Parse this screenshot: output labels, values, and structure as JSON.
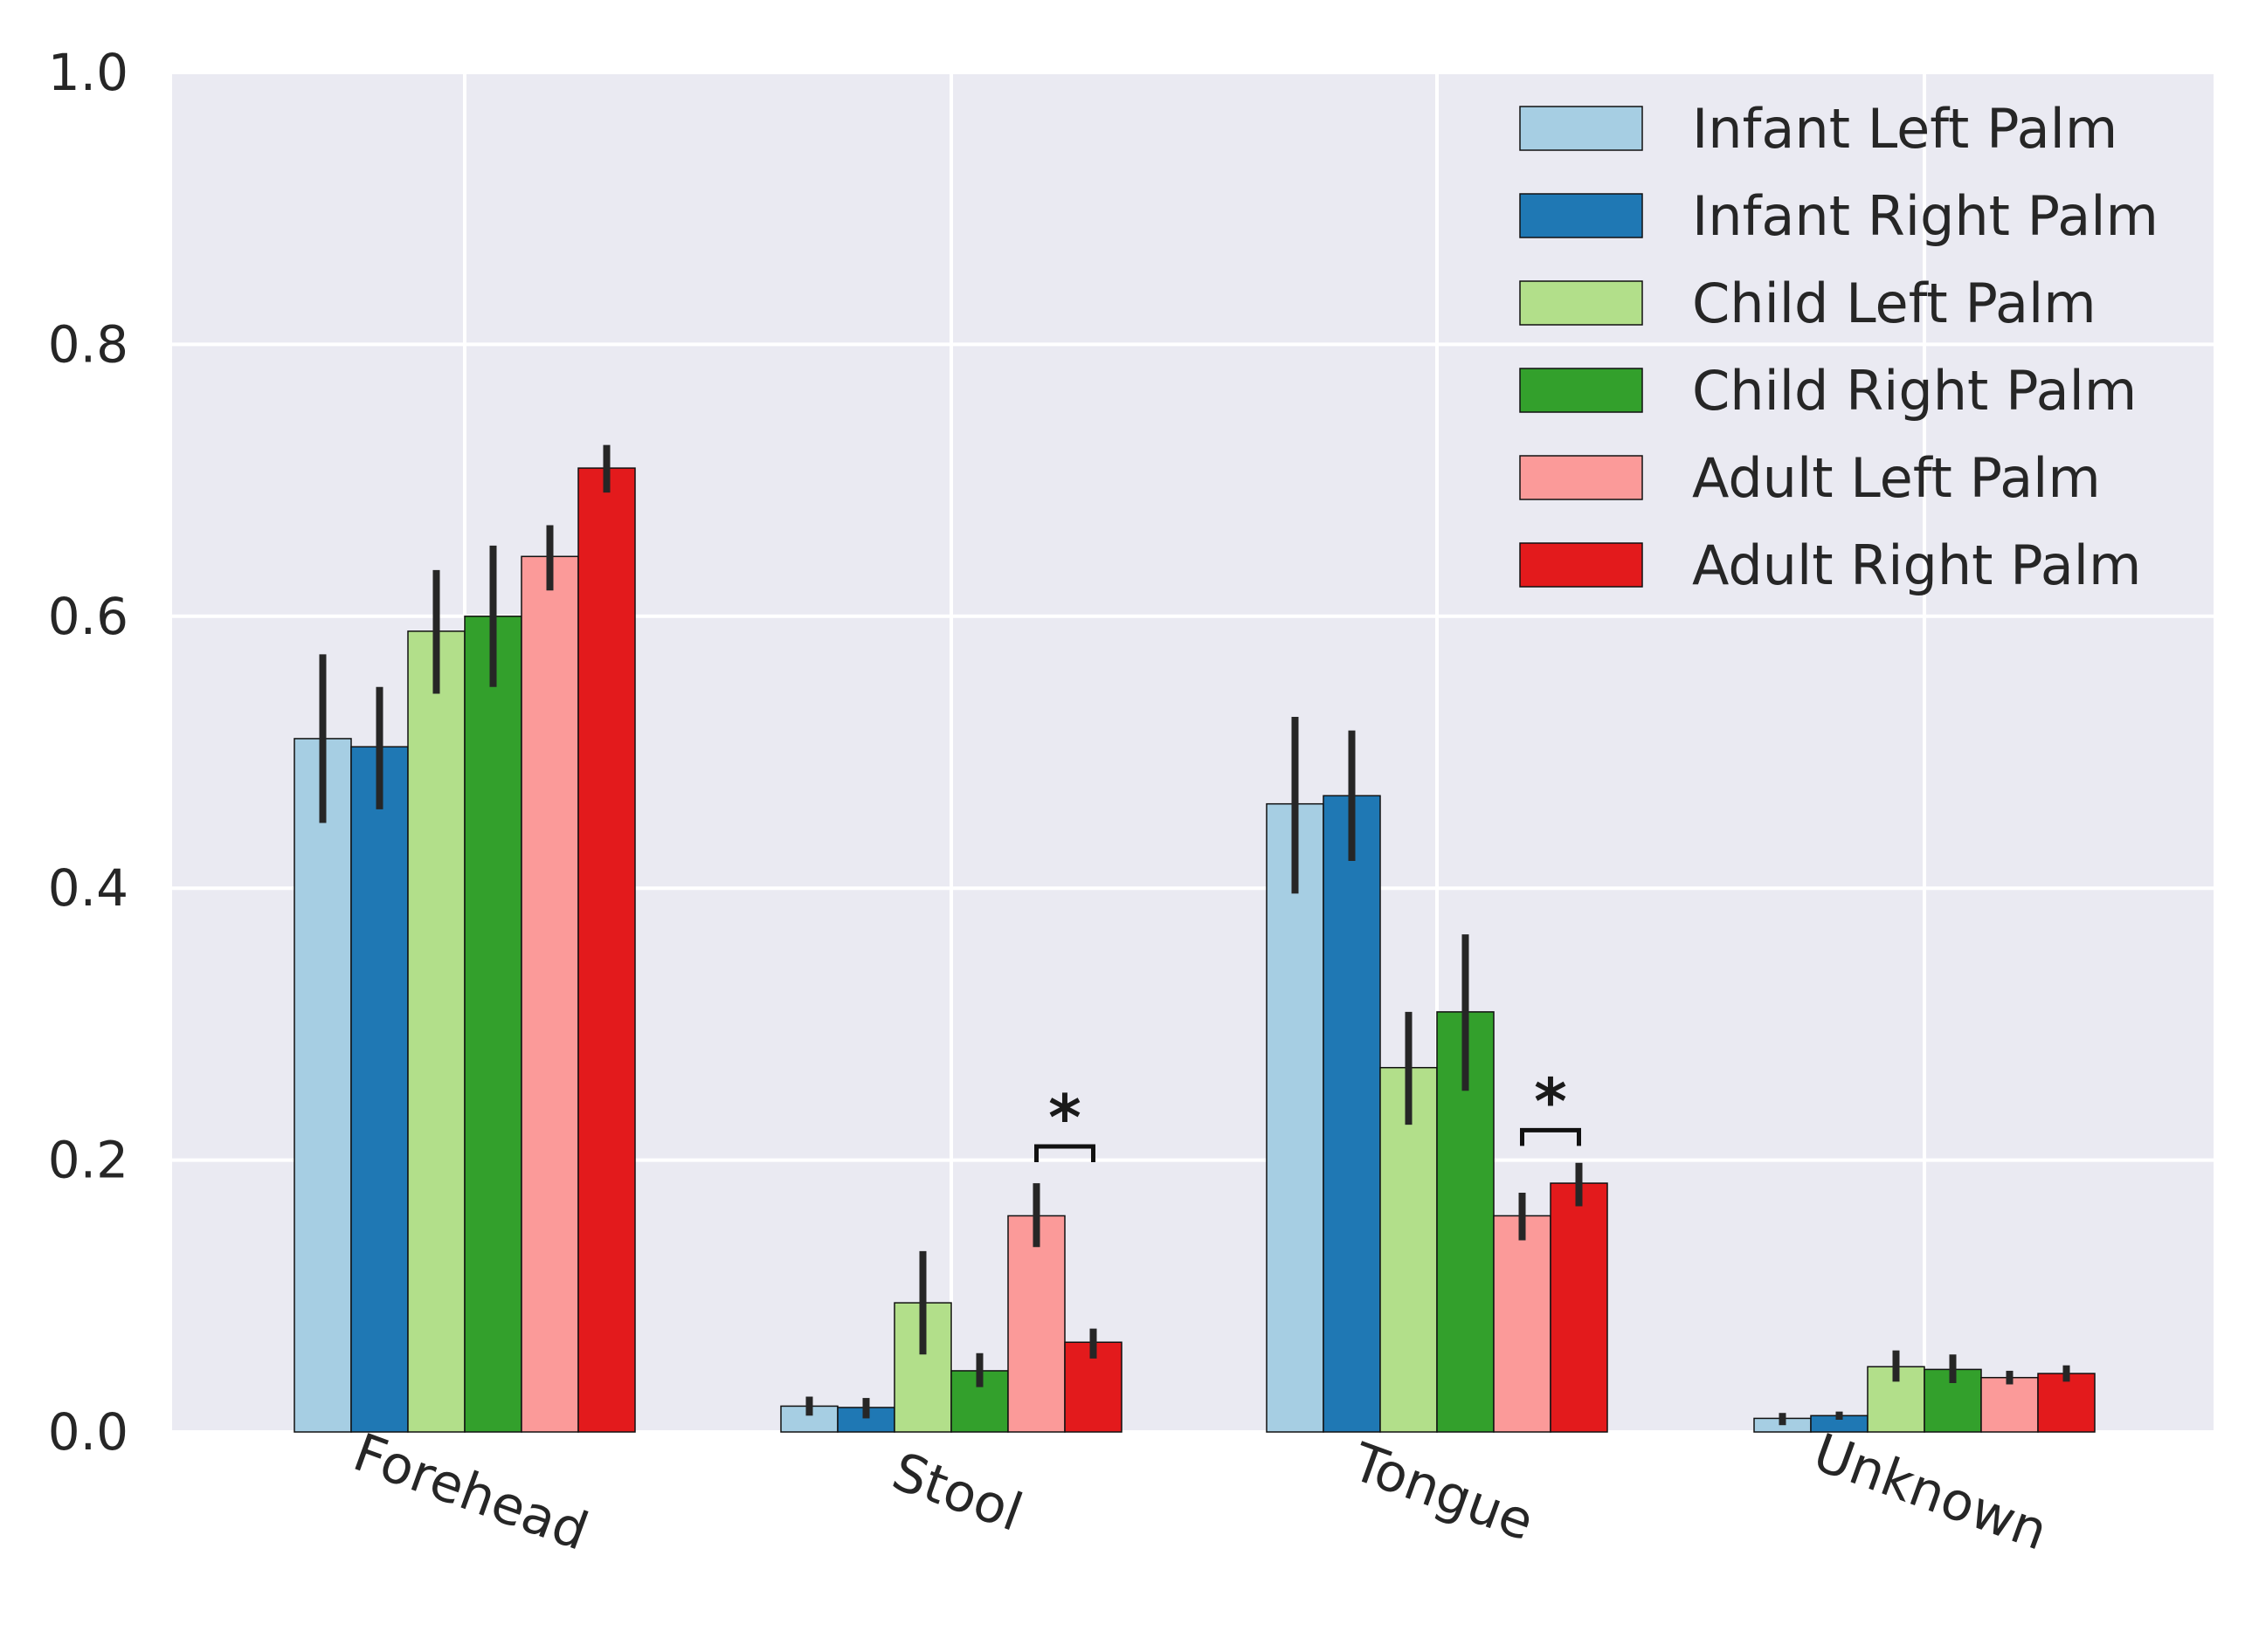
{
  "chart_data": {
    "type": "bar",
    "title": "",
    "xlabel": "",
    "ylabel": "",
    "ylim": [
      0,
      1.0
    ],
    "yticks": [
      "0.0",
      "0.2",
      "0.4",
      "0.6",
      "0.8",
      "1.0"
    ],
    "grid": true,
    "legend_position": "top-right",
    "categories": [
      "Forehead",
      "Stool",
      "Tongue",
      "Unknown"
    ],
    "series": [
      {
        "name": "Infant Left Palm",
        "color": "#a6cee3",
        "values": [
          0.51,
          0.019,
          0.462,
          0.01
        ],
        "err_low": [
          0.448,
          0.012,
          0.396,
          0.005
        ],
        "err_high": [
          0.572,
          0.026,
          0.526,
          0.014
        ]
      },
      {
        "name": "Infant Right Palm",
        "color": "#1f78b4",
        "values": [
          0.504,
          0.018,
          0.468,
          0.012
        ],
        "err_low": [
          0.458,
          0.01,
          0.42,
          0.009
        ],
        "err_high": [
          0.548,
          0.025,
          0.516,
          0.015
        ]
      },
      {
        "name": "Child Left Palm",
        "color": "#b2df8a",
        "values": [
          0.589,
          0.095,
          0.268,
          0.048
        ],
        "err_low": [
          0.543,
          0.057,
          0.226,
          0.037
        ],
        "err_high": [
          0.634,
          0.133,
          0.309,
          0.06
        ]
      },
      {
        "name": "Child Right Palm",
        "color": "#33a02c",
        "values": [
          0.6,
          0.045,
          0.309,
          0.046
        ],
        "err_low": [
          0.548,
          0.033,
          0.251,
          0.036
        ],
        "err_high": [
          0.652,
          0.058,
          0.366,
          0.057
        ]
      },
      {
        "name": "Adult Left Palm",
        "color": "#fb9a99",
        "values": [
          0.644,
          0.159,
          0.159,
          0.04
        ],
        "err_low": [
          0.619,
          0.136,
          0.141,
          0.035
        ],
        "err_high": [
          0.667,
          0.183,
          0.176,
          0.045
        ]
      },
      {
        "name": "Adult Right Palm",
        "color": "#e31a1c",
        "values": [
          0.709,
          0.066,
          0.183,
          0.043
        ],
        "err_low": [
          0.691,
          0.054,
          0.166,
          0.037
        ],
        "err_high": [
          0.726,
          0.076,
          0.198,
          0.049
        ]
      }
    ],
    "annotations": [
      {
        "text": "*",
        "category_index": 1,
        "from_series": 4,
        "to_series": 5,
        "y": 0.21
      },
      {
        "text": "*",
        "category_index": 2,
        "from_series": 4,
        "to_series": 5,
        "y": 0.222
      }
    ]
  }
}
